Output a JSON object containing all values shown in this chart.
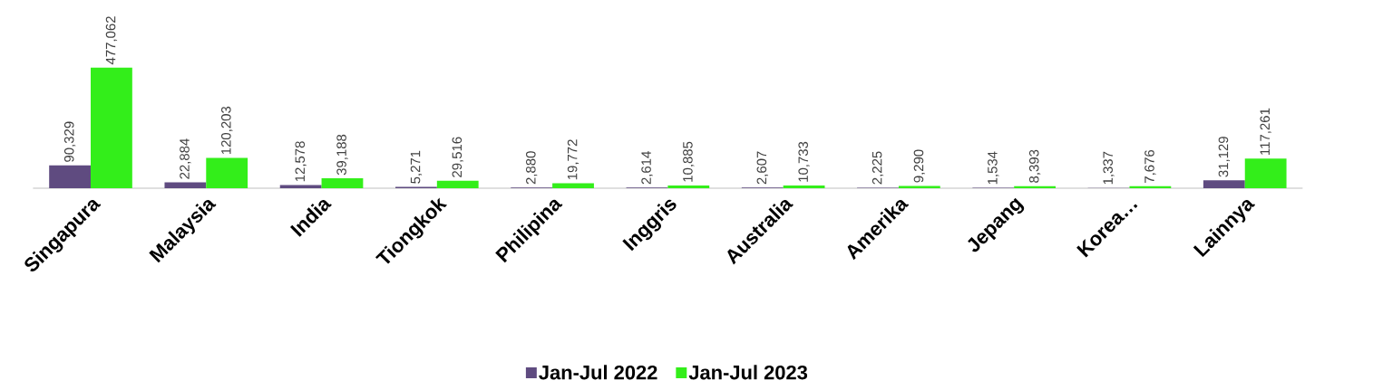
{
  "chart_data": {
    "type": "bar",
    "categories": [
      "Singapura",
      "Malaysia",
      "India",
      "Tiongkok",
      "Philipina",
      "Inggris",
      "Australia",
      "Amerika",
      "Jepang",
      "Korea…",
      "Lainnya"
    ],
    "series": [
      {
        "name": "Jan-Jul 2022",
        "color": "#5f4b80",
        "values": [
          90329,
          22884,
          12578,
          5271,
          2880,
          2614,
          2607,
          2225,
          1534,
          1337,
          31129
        ],
        "value_labels": [
          "90,329",
          "22,884",
          "12,578",
          "5,271",
          "2,880",
          "2,614",
          "2,607",
          "2,225",
          "1,534",
          "1,337",
          "31,129"
        ]
      },
      {
        "name": "Jan-Jul 2023",
        "color": "#33ee1a",
        "values": [
          477062,
          120203,
          39188,
          29516,
          19772,
          10885,
          10733,
          9290,
          8393,
          7676,
          117261
        ],
        "value_labels": [
          "477,062",
          "120,203",
          "39,188",
          "29,516",
          "19,772",
          "10,885",
          "10,733",
          "9,290",
          "8,393",
          "7,676",
          "117,261"
        ]
      }
    ],
    "legend": "bottom"
  }
}
